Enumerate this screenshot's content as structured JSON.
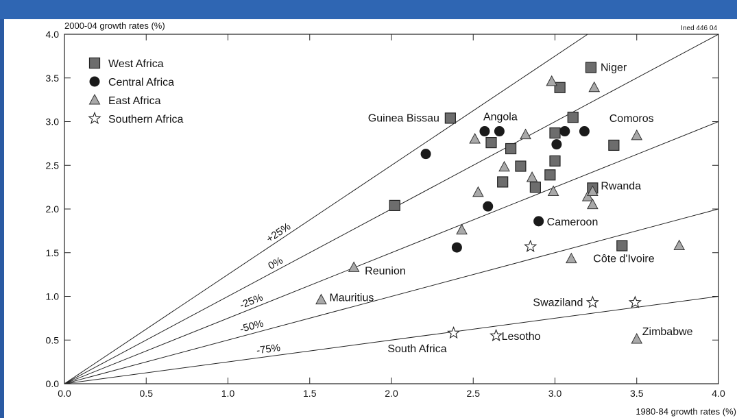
{
  "chart_data": {
    "type": "scatter",
    "ylabel": "2000-04 growth rates (%)",
    "xlabel": "1980-84 growth rates (%)",
    "source_note": "Ined 446 04",
    "xlim": [
      0,
      4
    ],
    "ylim": [
      0,
      4
    ],
    "xticks": [
      "0.0",
      "0.5",
      "1.0",
      "1.5",
      "2.0",
      "2.5",
      "3.0",
      "3.5",
      "4.0"
    ],
    "yticks": [
      "0.0",
      "0.5",
      "1.0",
      "1.5",
      "2.0",
      "2.5",
      "3.0",
      "3.5",
      "4.0"
    ],
    "legend_position": "top-left",
    "reference_lines": [
      {
        "label": "+25%",
        "slope": 1.25
      },
      {
        "label": "0%",
        "slope": 1.0
      },
      {
        "label": "-25%",
        "slope": 0.75
      },
      {
        "label": "-50%",
        "slope": 0.5
      },
      {
        "label": "-75%",
        "slope": 0.25
      }
    ],
    "series": [
      {
        "name": "West Africa",
        "marker": "square",
        "color": "#6d6d6d",
        "points": [
          {
            "x": 2.02,
            "y": 2.04,
            "label": ""
          },
          {
            "x": 2.36,
            "y": 3.04,
            "label": "Guinea Bissau"
          },
          {
            "x": 2.61,
            "y": 2.76,
            "label": ""
          },
          {
            "x": 2.68,
            "y": 2.31,
            "label": ""
          },
          {
            "x": 2.73,
            "y": 2.69,
            "label": ""
          },
          {
            "x": 2.79,
            "y": 2.49,
            "label": ""
          },
          {
            "x": 2.88,
            "y": 2.25,
            "label": ""
          },
          {
            "x": 2.97,
            "y": 2.39,
            "label": ""
          },
          {
            "x": 3.0,
            "y": 2.55,
            "label": ""
          },
          {
            "x": 3.0,
            "y": 2.87,
            "label": ""
          },
          {
            "x": 3.03,
            "y": 3.39,
            "label": ""
          },
          {
            "x": 3.11,
            "y": 3.05,
            "label": ""
          },
          {
            "x": 3.22,
            "y": 3.62,
            "label": "Niger"
          },
          {
            "x": 3.23,
            "y": 2.24,
            "label": "Rwanda"
          },
          {
            "x": 3.36,
            "y": 2.73,
            "label": ""
          },
          {
            "x": 3.41,
            "y": 1.58,
            "label": "Côte d'Ivoire"
          }
        ]
      },
      {
        "name": "Central Africa",
        "marker": "circle",
        "color": "#1a1a1a",
        "points": [
          {
            "x": 2.21,
            "y": 2.63,
            "label": ""
          },
          {
            "x": 2.4,
            "y": 1.56,
            "label": ""
          },
          {
            "x": 2.57,
            "y": 2.89,
            "label": "Angola"
          },
          {
            "x": 2.59,
            "y": 2.03,
            "label": ""
          },
          {
            "x": 2.66,
            "y": 2.89,
            "label": ""
          },
          {
            "x": 2.9,
            "y": 1.86,
            "label": "Cameroon"
          },
          {
            "x": 3.01,
            "y": 2.74,
            "label": ""
          },
          {
            "x": 3.06,
            "y": 2.89,
            "label": ""
          },
          {
            "x": 3.18,
            "y": 2.89,
            "label": ""
          }
        ]
      },
      {
        "name": "East Africa",
        "marker": "triangle",
        "color": "#a9a9a9",
        "points": [
          {
            "x": 1.57,
            "y": 0.96,
            "label": "Mauritius"
          },
          {
            "x": 1.77,
            "y": 1.33,
            "label": "Reunion"
          },
          {
            "x": 2.43,
            "y": 1.76,
            "label": ""
          },
          {
            "x": 2.51,
            "y": 2.8,
            "label": ""
          },
          {
            "x": 2.53,
            "y": 2.19,
            "label": ""
          },
          {
            "x": 2.69,
            "y": 2.48,
            "label": ""
          },
          {
            "x": 2.82,
            "y": 2.85,
            "label": ""
          },
          {
            "x": 2.86,
            "y": 2.36,
            "label": ""
          },
          {
            "x": 2.98,
            "y": 3.46,
            "label": ""
          },
          {
            "x": 2.99,
            "y": 2.2,
            "label": ""
          },
          {
            "x": 3.1,
            "y": 1.43,
            "label": ""
          },
          {
            "x": 3.2,
            "y": 2.14,
            "label": ""
          },
          {
            "x": 3.23,
            "y": 2.05,
            "label": ""
          },
          {
            "x": 3.23,
            "y": 2.2,
            "label": ""
          },
          {
            "x": 3.24,
            "y": 3.39,
            "label": ""
          },
          {
            "x": 3.5,
            "y": 2.84,
            "label": "Comoros"
          },
          {
            "x": 3.5,
            "y": 0.51,
            "label": "Zimbabwe"
          },
          {
            "x": 3.76,
            "y": 1.58,
            "label": ""
          }
        ]
      },
      {
        "name": "Southern Africa",
        "marker": "star",
        "color": "#ffffff",
        "points": [
          {
            "x": 2.38,
            "y": 0.58,
            "label": "South Africa"
          },
          {
            "x": 2.64,
            "y": 0.55,
            "label": "Lesotho"
          },
          {
            "x": 2.85,
            "y": 1.57,
            "label": ""
          },
          {
            "x": 3.23,
            "y": 0.93,
            "label": "Swaziland"
          },
          {
            "x": 3.49,
            "y": 0.93,
            "label": ""
          }
        ]
      }
    ]
  }
}
